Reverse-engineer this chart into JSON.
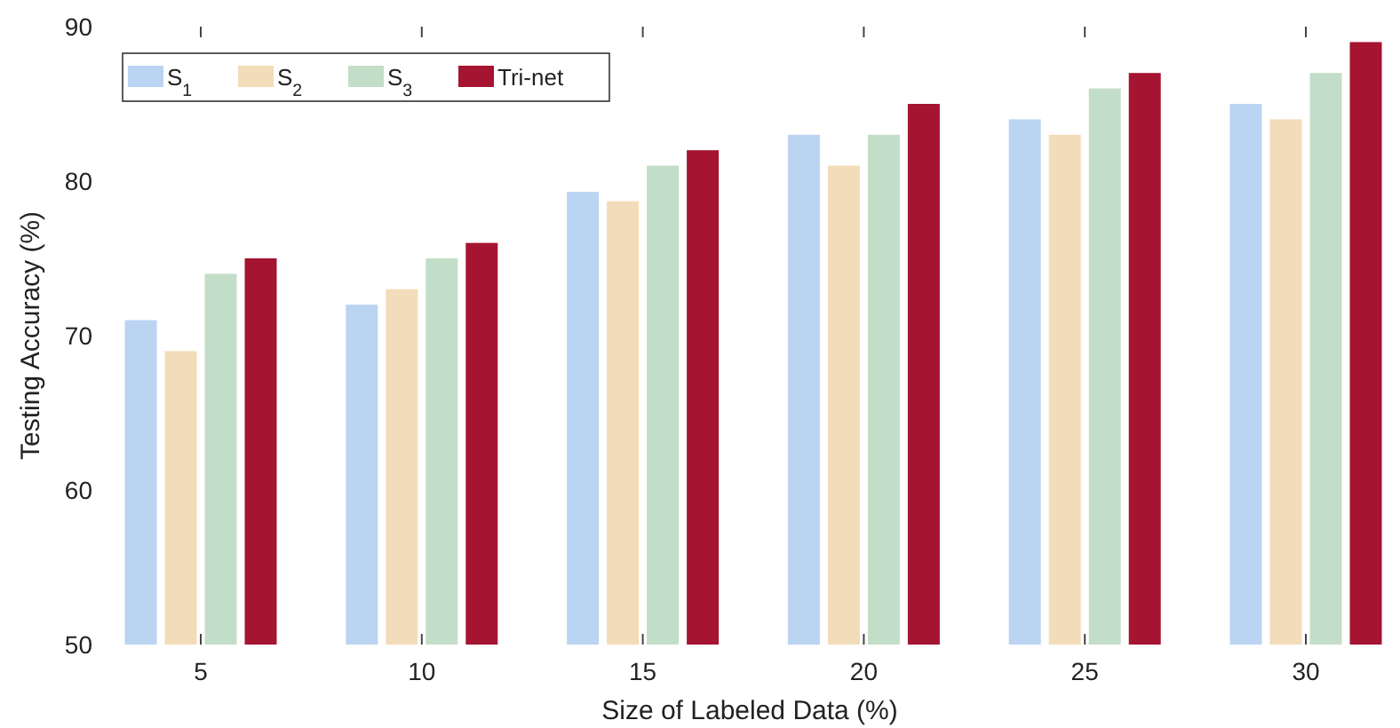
{
  "chart_data": {
    "type": "bar",
    "xlabel": "Size of Labeled Data (%)",
    "ylabel": "Testing Accuracy (%)",
    "categories": [
      "5",
      "10",
      "15",
      "20",
      "25",
      "30"
    ],
    "series": [
      {
        "name": "S$_{1}$",
        "color": "#bad4f1",
        "values": [
          71,
          72,
          79.3,
          83,
          84,
          85
        ]
      },
      {
        "name": "S$_{2}$",
        "color": "#f3dcb9",
        "values": [
          69,
          73,
          78.7,
          81,
          83,
          84
        ]
      },
      {
        "name": "S$_{3}$",
        "color": "#c3dec8",
        "values": [
          74,
          75,
          81,
          83,
          86,
          87
        ]
      },
      {
        "name": "Tri-net",
        "color": "#a51431",
        "values": [
          75,
          76,
          82,
          85,
          87,
          89
        ]
      }
    ],
    "ylim": [
      50,
      90
    ],
    "yticks": [
      50,
      60,
      70,
      80,
      90
    ],
    "grid": false,
    "legend": "top left"
  }
}
